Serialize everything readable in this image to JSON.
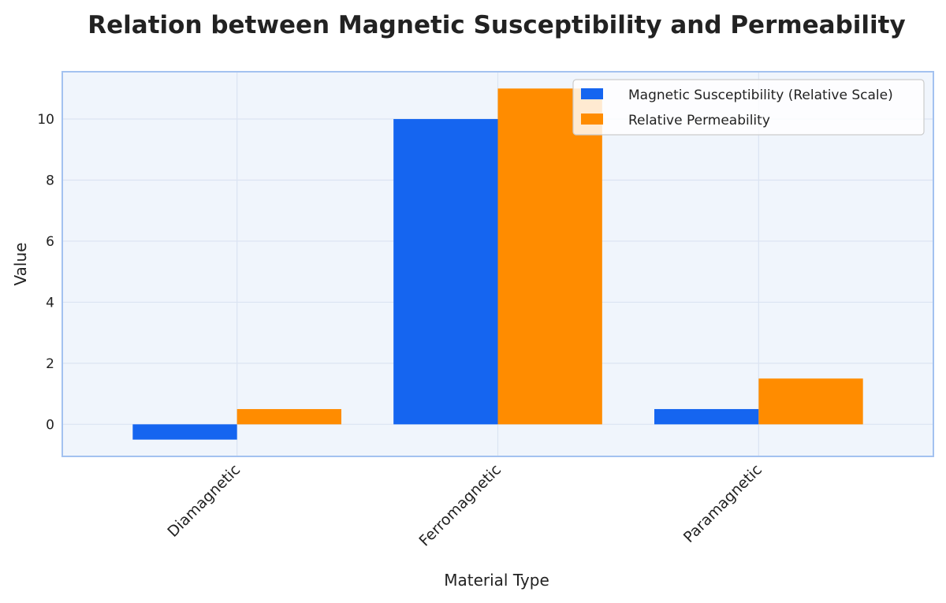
{
  "chart_data": {
    "type": "bar",
    "title": "Relation between Magnetic Susceptibility and Permeability",
    "xlabel": "Material Type",
    "ylabel": "Value",
    "categories": [
      "Diamagnetic",
      "Ferromagnetic",
      "Paramagnetic"
    ],
    "series": [
      {
        "name": "Magnetic Susceptibility (Relative Scale)",
        "values": [
          -0.5,
          10,
          0.5
        ],
        "color": "#1565F0"
      },
      {
        "name": "Relative Permeability",
        "values": [
          0.5,
          11,
          1.5
        ],
        "color": "#FF8C00"
      }
    ],
    "ylim": [
      -1.05,
      11.55
    ],
    "yticks": [
      0,
      2,
      4,
      6,
      8,
      10
    ],
    "grid": true,
    "legend_position": "top-right",
    "plot_background": "#F0F5FC",
    "frame_color": "#A3C2F0"
  }
}
